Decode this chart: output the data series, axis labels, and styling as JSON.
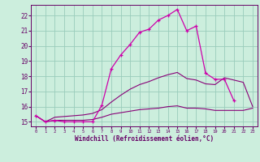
{
  "xlabel": "Windchill (Refroidissement éolien,°C)",
  "bg_color": "#cceedd",
  "grid_color": "#99ccbb",
  "line_color_main": "#cc00aa",
  "line_color_env": "#880077",
  "xlim": [
    -0.5,
    23.5
  ],
  "ylim": [
    14.7,
    22.7
  ],
  "xticks": [
    0,
    1,
    2,
    3,
    4,
    5,
    6,
    7,
    8,
    9,
    10,
    11,
    12,
    13,
    14,
    15,
    16,
    17,
    18,
    19,
    20,
    21,
    22,
    23
  ],
  "yticks": [
    15,
    16,
    17,
    18,
    19,
    20,
    21,
    22
  ],
  "curve_main_x": [
    0,
    1,
    2,
    3,
    4,
    5,
    6,
    7,
    8,
    9,
    10,
    11,
    12,
    13,
    14,
    15,
    16,
    17,
    18,
    19,
    20,
    21
  ],
  "curve_main_y": [
    15.4,
    15.0,
    15.1,
    15.0,
    15.0,
    15.0,
    15.0,
    16.1,
    18.5,
    19.4,
    20.1,
    20.9,
    21.1,
    21.7,
    22.0,
    22.4,
    21.0,
    21.3,
    18.2,
    17.8,
    17.8,
    16.4
  ],
  "curve_upper_x": [
    0,
    1,
    2,
    3,
    4,
    5,
    6,
    7,
    8,
    9,
    10,
    11,
    12,
    13,
    14,
    15,
    16,
    17,
    18,
    19,
    20,
    21,
    22,
    23
  ],
  "curve_upper_y": [
    15.4,
    15.0,
    15.3,
    15.35,
    15.4,
    15.45,
    15.55,
    15.8,
    16.3,
    16.75,
    17.15,
    17.45,
    17.65,
    17.9,
    18.1,
    18.25,
    17.85,
    17.75,
    17.5,
    17.45,
    17.9,
    17.75,
    17.6,
    16.0
  ],
  "curve_lower_x": [
    0,
    1,
    2,
    3,
    4,
    5,
    6,
    7,
    8,
    9,
    10,
    11,
    12,
    13,
    14,
    15,
    16,
    17,
    18,
    19,
    20,
    21,
    22,
    23
  ],
  "curve_lower_y": [
    15.4,
    15.0,
    15.1,
    15.1,
    15.1,
    15.1,
    15.15,
    15.3,
    15.5,
    15.6,
    15.7,
    15.8,
    15.85,
    15.9,
    16.0,
    16.05,
    15.9,
    15.9,
    15.85,
    15.75,
    15.75,
    15.75,
    15.75,
    15.9
  ]
}
